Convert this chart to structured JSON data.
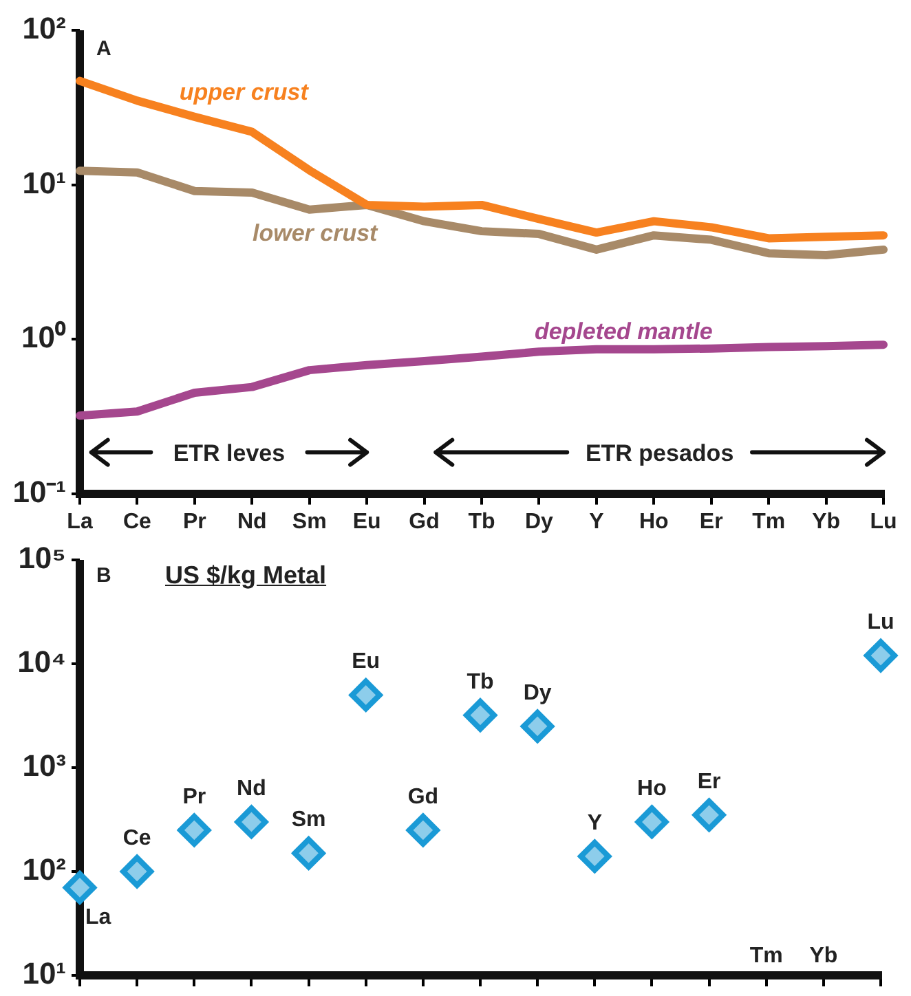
{
  "chart_data": [
    {
      "type": "line",
      "categories": [
        "La",
        "Ce",
        "Pr",
        "Nd",
        "Sm",
        "Eu",
        "Gd",
        "Tb",
        "Dy",
        "Y",
        "Ho",
        "Er",
        "Tm",
        "Yb",
        "Lu"
      ],
      "log": true,
      "ylim": [
        0.1,
        100
      ],
      "yticks": [
        {
          "value": 0.1,
          "label": "10⁻¹"
        },
        {
          "value": 1,
          "label": "10⁰"
        },
        {
          "value": 10,
          "label": "10¹"
        },
        {
          "value": 100,
          "label": "10²"
        }
      ],
      "series": [
        {
          "name": "upper crust",
          "color": "#f7811f",
          "values": [
            47,
            35,
            27.5,
            22,
            12.4,
            7.4,
            7.2,
            7.4,
            6.0,
            4.9,
            5.8,
            5.3,
            4.5,
            4.6,
            4.7
          ]
        },
        {
          "name": "lower crust",
          "color": "#a88a68",
          "values": [
            12.3,
            12.0,
            9.1,
            8.9,
            6.9,
            7.4,
            5.8,
            5.0,
            4.8,
            3.8,
            4.7,
            4.4,
            3.6,
            3.5,
            3.8
          ]
        },
        {
          "name": "depleted mantle",
          "color": "#a5478e",
          "values": [
            0.32,
            0.34,
            0.45,
            0.49,
            0.63,
            0.68,
            0.72,
            0.77,
            0.83,
            0.86,
            0.86,
            0.87,
            0.89,
            0.9,
            0.92
          ]
        }
      ],
      "annotations": [
        "A",
        "ETR leves",
        "ETR pesados"
      ]
    },
    {
      "type": "scatter",
      "title": "US $/kg Metal",
      "categories": [
        "La",
        "Ce",
        "Pr",
        "Nd",
        "Sm",
        "Eu",
        "Gd",
        "Tb",
        "Dy",
        "Y",
        "Ho",
        "Er",
        "Tm",
        "Yb",
        "Lu"
      ],
      "log": true,
      "ylim": [
        10,
        100000
      ],
      "yticks": [
        {
          "value": 10,
          "label": "10¹"
        },
        {
          "value": 100,
          "label": "10²"
        },
        {
          "value": 1000,
          "label": "10³"
        },
        {
          "value": 10000,
          "label": "10⁴"
        },
        {
          "value": 100000,
          "label": "10⁵"
        }
      ],
      "tick_labels": "y",
      "marker": "diamond",
      "color": "#1a9ad6",
      "values": [
        70,
        100,
        250,
        300,
        150,
        5000,
        250,
        3200,
        2500,
        140,
        300,
        350,
        null,
        null,
        12000
      ],
      "annotations": [
        "B"
      ]
    }
  ]
}
